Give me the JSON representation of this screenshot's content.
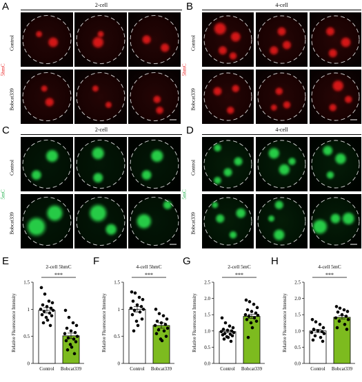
{
  "panels": {
    "A": {
      "letter": "A",
      "stage": "2-cell",
      "rows": [
        "Control",
        "Bobcat339"
      ],
      "mark": "5hmC",
      "color": "red"
    },
    "B": {
      "letter": "B",
      "stage": "4-cell",
      "rows": [
        "Control",
        "Bobcat339"
      ],
      "mark": "5hmC",
      "color": "red"
    },
    "C": {
      "letter": "C",
      "stage": "2-cell",
      "rows": [
        "Control",
        "Bobcat339"
      ],
      "mark": "5mC",
      "color": "green"
    },
    "D": {
      "letter": "D",
      "stage": "4-cell",
      "rows": [
        "Control",
        "Bobcat339"
      ],
      "mark": "5mC",
      "color": "green"
    }
  },
  "colors": {
    "red_stain": "#e01818",
    "green_stain": "#2ad84a",
    "mark_5hmC": "#e81c1c",
    "mark_5mC": "#22b14c",
    "control_bar": "#ffffff",
    "treatment_bar": "#7dbb1f"
  },
  "chart_data": [
    {
      "letter": "E",
      "type": "bar",
      "title": "2-cell 5hmC",
      "ylabel": "Relative Fluorescence Intensity",
      "categories": [
        "Control",
        "Bobcat339"
      ],
      "values": [
        0.98,
        0.51
      ],
      "errors": [
        0.05,
        0.05
      ],
      "ylim": [
        0,
        1.5
      ],
      "yticks": [
        "0",
        "0.5",
        "1",
        "1.5"
      ],
      "ytick_values": [
        0,
        0.5,
        1.0,
        1.5
      ],
      "significance": "***",
      "points": [
        [
          1.4,
          1.28,
          1.15,
          1.12,
          1.08,
          1.05,
          1.02,
          1.0,
          0.98,
          0.96,
          0.93,
          0.9,
          0.88,
          0.85,
          0.8,
          0.75,
          0.7
        ],
        [
          0.98,
          0.85,
          0.75,
          0.7,
          0.65,
          0.6,
          0.57,
          0.55,
          0.5,
          0.47,
          0.45,
          0.42,
          0.4,
          0.35,
          0.3,
          0.25,
          0.18
        ]
      ]
    },
    {
      "letter": "F",
      "type": "bar",
      "title": "4-cell 5hmC",
      "ylabel": "Relative Fluorescence Intensity",
      "categories": [
        "Control",
        "Bobcat339"
      ],
      "values": [
        1.0,
        0.7
      ],
      "errors": [
        0.05,
        0.05
      ],
      "ylim": [
        0,
        1.5
      ],
      "yticks": [
        "0",
        "0.5",
        "1",
        "1.5"
      ],
      "ytick_values": [
        0,
        0.5,
        1.0,
        1.5
      ],
      "significance": "***",
      "points": [
        [
          1.32,
          1.3,
          1.22,
          1.18,
          1.15,
          1.08,
          1.05,
          1.02,
          1.0,
          0.98,
          0.95,
          0.9,
          0.82,
          0.78,
          0.7,
          0.6
        ],
        [
          1.0,
          0.92,
          0.88,
          0.82,
          0.78,
          0.75,
          0.72,
          0.7,
          0.65,
          0.62,
          0.6,
          0.55,
          0.5,
          0.45,
          0.42
        ]
      ]
    },
    {
      "letter": "G",
      "type": "bar",
      "title": "2-cell 5mC",
      "ylabel": "Relative Fluorescence Intensity",
      "categories": [
        "Control",
        "Bobcat339"
      ],
      "values": [
        0.98,
        1.45
      ],
      "errors": [
        0.04,
        0.06
      ],
      "ylim": [
        0,
        2.5
      ],
      "yticks": [
        "0.0",
        "0.5",
        "1.0",
        "1.5",
        "2.0",
        "2.5"
      ],
      "ytick_values": [
        0,
        0.5,
        1.0,
        1.5,
        2.0,
        2.5
      ],
      "significance": "***",
      "points": [
        [
          1.4,
          1.25,
          1.15,
          1.1,
          1.05,
          1.02,
          1.0,
          0.98,
          0.95,
          0.92,
          0.9,
          0.88,
          0.85,
          0.82,
          0.8,
          0.75,
          0.68
        ],
        [
          1.95,
          1.9,
          1.82,
          1.72,
          1.65,
          1.6,
          1.55,
          1.5,
          1.48,
          1.45,
          1.4,
          1.35,
          1.3,
          1.25,
          1.1,
          0.8
        ]
      ]
    },
    {
      "letter": "H",
      "type": "bar",
      "title": "4-cell 5mC",
      "ylabel": "Relative Fluorescence Intensity",
      "categories": [
        "Control",
        "Bobcat339"
      ],
      "values": [
        1.0,
        1.42
      ],
      "errors": [
        0.05,
        0.05
      ],
      "ylim": [
        0,
        2.5
      ],
      "yticks": [
        "0.0",
        "0.5",
        "1.0",
        "1.5",
        "2.0",
        "2.5"
      ],
      "ytick_values": [
        0,
        0.5,
        1.0,
        1.5,
        2.0,
        2.5
      ],
      "significance": "***",
      "points": [
        [
          1.35,
          1.28,
          1.2,
          1.1,
          1.05,
          1.0,
          0.98,
          0.95,
          0.92,
          0.85,
          0.8,
          0.72,
          0.68
        ],
        [
          1.75,
          1.7,
          1.65,
          1.6,
          1.58,
          1.5,
          1.45,
          1.4,
          1.35,
          1.3,
          1.2,
          1.1,
          1.05
        ]
      ]
    }
  ]
}
